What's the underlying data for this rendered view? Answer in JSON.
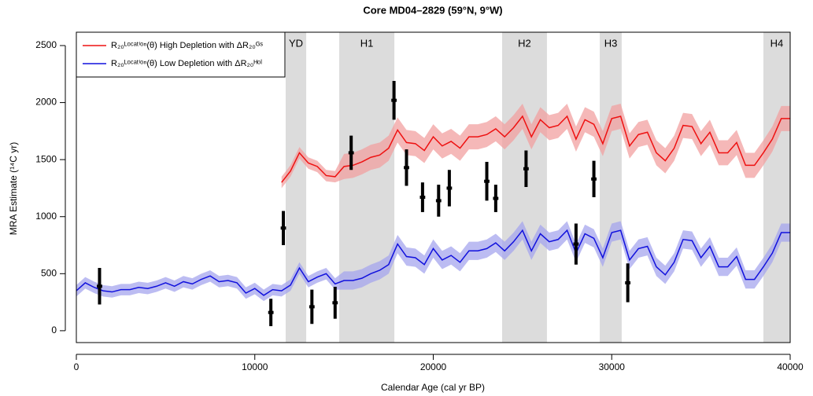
{
  "chart_data": {
    "type": "line",
    "title": "Core MD04–2829 (59°N, 9°W)",
    "xlabel": "Calendar Age (cal yr BP)",
    "ylabel": "MRA Estimate (¹⁴C yr)",
    "xlim": [
      0,
      40000
    ],
    "ylim": [
      -104,
      2617
    ],
    "xticks": [
      0,
      10000,
      20000,
      30000,
      40000
    ],
    "yticks": [
      0,
      500,
      1000,
      1500,
      2000,
      2500
    ],
    "legend": "top-left",
    "shaded_regions": [
      {
        "label": "YD",
        "start": 11730,
        "end": 12880
      },
      {
        "label": "H1",
        "start": 14730,
        "end": 17820
      },
      {
        "label": "H2",
        "start": 23860,
        "end": 26370
      },
      {
        "label": "H3",
        "start": 29330,
        "end": 30560
      },
      {
        "label": "H4",
        "start": 38500,
        "end": 40000
      }
    ],
    "region_color": "#dcdcdc",
    "x": [
      0,
      500,
      1000,
      1500,
      2000,
      2500,
      3000,
      3500,
      4000,
      4500,
      5000,
      5500,
      6000,
      6500,
      7000,
      7500,
      8000,
      8500,
      9000,
      9500,
      10000,
      10500,
      11000,
      11500,
      12000,
      12500,
      13000,
      13500,
      14000,
      14500,
      15000,
      15500,
      16000,
      16500,
      17000,
      17500,
      18000,
      18500,
      19000,
      19500,
      20000,
      20500,
      21000,
      21500,
      22000,
      22500,
      23000,
      23500,
      24000,
      24500,
      25000,
      25500,
      26000,
      26500,
      27000,
      27500,
      28000,
      28500,
      29000,
      29500,
      30000,
      30500,
      31000,
      31500,
      32000,
      32500,
      33000,
      33500,
      34000,
      34500,
      35000,
      35500,
      36000,
      36500,
      37000,
      37500,
      38000,
      38500,
      39000,
      39500,
      40000
    ],
    "series": [
      {
        "name": "R₂₀ᴸᵒᶜᵃᵗⁱᵒⁿ(θ) High Depletion with ΔR₂₀ᴳˢ",
        "color": "#ee1111",
        "band_color": "#f2a0a0",
        "values": [
          null,
          null,
          null,
          null,
          null,
          null,
          null,
          null,
          null,
          null,
          null,
          null,
          null,
          null,
          null,
          null,
          null,
          null,
          null,
          null,
          null,
          null,
          null,
          1300,
          1400,
          1560,
          1470,
          1440,
          1360,
          1350,
          1440,
          1450,
          1480,
          1520,
          1540,
          1600,
          1760,
          1650,
          1640,
          1580,
          1700,
          1620,
          1660,
          1600,
          1700,
          1700,
          1720,
          1770,
          1700,
          1780,
          1880,
          1700,
          1850,
          1780,
          1800,
          1880,
          1680,
          1850,
          1810,
          1640,
          1860,
          1880,
          1620,
          1720,
          1740,
          1560,
          1490,
          1600,
          1800,
          1790,
          1640,
          1740,
          1560,
          1560,
          1650,
          1450,
          1450,
          1560,
          1680,
          1860,
          1860
        ],
        "spread": [
          null,
          null,
          null,
          null,
          null,
          null,
          null,
          null,
          null,
          null,
          null,
          null,
          null,
          null,
          null,
          null,
          null,
          null,
          null,
          null,
          null,
          null,
          null,
          50,
          50,
          50,
          50,
          50,
          50,
          50,
          110,
          110,
          110,
          110,
          110,
          110,
          110,
          110,
          110,
          110,
          110,
          110,
          110,
          110,
          110,
          110,
          110,
          110,
          110,
          110,
          110,
          110,
          110,
          110,
          110,
          110,
          110,
          110,
          110,
          110,
          110,
          110,
          110,
          110,
          110,
          110,
          110,
          110,
          110,
          110,
          110,
          110,
          110,
          110,
          110,
          110,
          110,
          110,
          110,
          110,
          110
        ]
      },
      {
        "name": "R₂₀ᴸᵒᶜᵃᵗⁱᵒⁿ(θ) Low Depletion with ΔR₂₀ᴴᵒˡ",
        "color": "#1111dd",
        "band_color": "#a6a6ee",
        "values": [
          350,
          420,
          380,
          350,
          340,
          360,
          360,
          380,
          370,
          390,
          420,
          390,
          430,
          410,
          450,
          480,
          430,
          440,
          420,
          330,
          370,
          310,
          360,
          350,
          400,
          550,
          430,
          470,
          500,
          410,
          440,
          440,
          460,
          500,
          530,
          580,
          760,
          650,
          640,
          580,
          720,
          620,
          660,
          600,
          700,
          700,
          720,
          770,
          700,
          780,
          880,
          700,
          850,
          780,
          800,
          880,
          680,
          850,
          810,
          640,
          860,
          880,
          620,
          720,
          740,
          560,
          490,
          600,
          800,
          790,
          640,
          740,
          560,
          560,
          650,
          450,
          450,
          560,
          680,
          860,
          860
        ],
        "spread": [
          50,
          50,
          50,
          50,
          50,
          50,
          50,
          50,
          50,
          50,
          50,
          50,
          50,
          50,
          50,
          50,
          50,
          50,
          50,
          50,
          50,
          50,
          50,
          50,
          50,
          50,
          50,
          50,
          50,
          50,
          80,
          80,
          80,
          80,
          80,
          80,
          80,
          80,
          80,
          80,
          80,
          80,
          80,
          80,
          80,
          80,
          80,
          80,
          80,
          80,
          80,
          80,
          80,
          80,
          80,
          80,
          80,
          80,
          80,
          80,
          80,
          80,
          80,
          80,
          80,
          80,
          80,
          80,
          80,
          80,
          80,
          80,
          80,
          80,
          80,
          80,
          80,
          80,
          80,
          80,
          80
        ]
      }
    ],
    "points": {
      "color": "#000000",
      "x": [
        1300,
        10900,
        11600,
        13200,
        14500,
        15400,
        17800,
        18500,
        19400,
        20300,
        20900,
        23000,
        23500,
        25200,
        28000,
        29000,
        30900
      ],
      "y": [
        390,
        160,
        900,
        210,
        245,
        1560,
        2020,
        1430,
        1170,
        1140,
        1250,
        1310,
        1160,
        1420,
        760,
        1330,
        420
      ],
      "yerr": [
        160,
        120,
        150,
        150,
        140,
        150,
        170,
        160,
        130,
        140,
        160,
        170,
        120,
        160,
        180,
        160,
        170
      ],
      "xerr": [
        150,
        150,
        150,
        150,
        150,
        150,
        150,
        150,
        150,
        150,
        150,
        150,
        150,
        150,
        150,
        150,
        150
      ]
    }
  }
}
